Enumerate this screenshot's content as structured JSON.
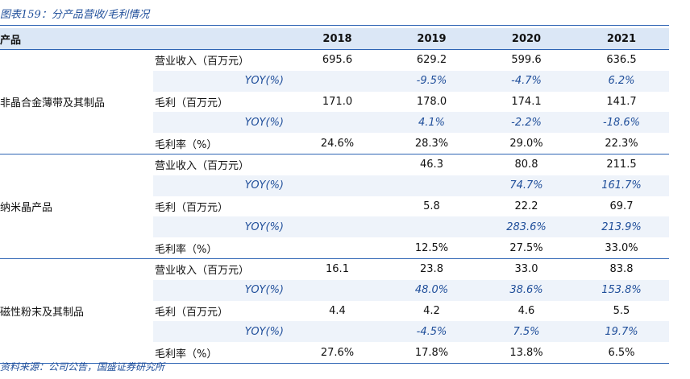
{
  "caption": "图表159：分产品营收/毛利情况",
  "header": {
    "product": "产品",
    "years": [
      "2018",
      "2019",
      "2020",
      "2021"
    ]
  },
  "groups": [
    {
      "product": "非晶合金薄带及其制品",
      "rows": [
        {
          "metric": "营业收入（百万元）",
          "type": "value",
          "values": [
            "695.6",
            "629.2",
            "599.6",
            "636.5"
          ]
        },
        {
          "metric": "YOY(%)",
          "type": "yoy",
          "values": [
            "",
            "-9.5%",
            "-4.7%",
            "6.2%"
          ]
        },
        {
          "metric": "毛利（百万元）",
          "type": "value",
          "values": [
            "171.0",
            "178.0",
            "174.1",
            "141.7"
          ]
        },
        {
          "metric": "YOY(%)",
          "type": "yoy",
          "values": [
            "",
            "4.1%",
            "-2.2%",
            "-18.6%"
          ]
        },
        {
          "metric": "毛利率（%）",
          "type": "value",
          "values": [
            "24.6%",
            "28.3%",
            "29.0%",
            "22.3%"
          ]
        }
      ]
    },
    {
      "product": "纳米晶产品",
      "rows": [
        {
          "metric": "营业收入（百万元）",
          "type": "value",
          "values": [
            "",
            "46.3",
            "80.8",
            "211.5"
          ]
        },
        {
          "metric": "YOY(%)",
          "type": "yoy",
          "values": [
            "",
            "",
            "74.7%",
            "161.7%"
          ]
        },
        {
          "metric": "毛利（百万元）",
          "type": "value",
          "values": [
            "",
            "5.8",
            "22.2",
            "69.7"
          ]
        },
        {
          "metric": "YOY(%)",
          "type": "yoy",
          "values": [
            "",
            "",
            "283.6%",
            "213.9%"
          ]
        },
        {
          "metric": "毛利率（%）",
          "type": "value",
          "values": [
            "",
            "12.5%",
            "27.5%",
            "33.0%"
          ]
        }
      ]
    },
    {
      "product": "磁性粉末及其制品",
      "rows": [
        {
          "metric": "营业收入（百万元）",
          "type": "value",
          "values": [
            "16.1",
            "23.8",
            "33.0",
            "83.8"
          ]
        },
        {
          "metric": "YOY(%)",
          "type": "yoy",
          "values": [
            "",
            "48.0%",
            "38.6%",
            "153.8%"
          ]
        },
        {
          "metric": "毛利（百万元）",
          "type": "value",
          "values": [
            "4.4",
            "4.2",
            "4.6",
            "5.5"
          ]
        },
        {
          "metric": "YOY(%)",
          "type": "yoy",
          "values": [
            "",
            "-4.5%",
            "7.5%",
            "19.7%"
          ]
        },
        {
          "metric": "毛利率（%）",
          "type": "value",
          "values": [
            "27.6%",
            "17.8%",
            "13.8%",
            "6.5%"
          ]
        }
      ]
    }
  ],
  "source": "资料来源：公司公告，国盛证券研究所"
}
